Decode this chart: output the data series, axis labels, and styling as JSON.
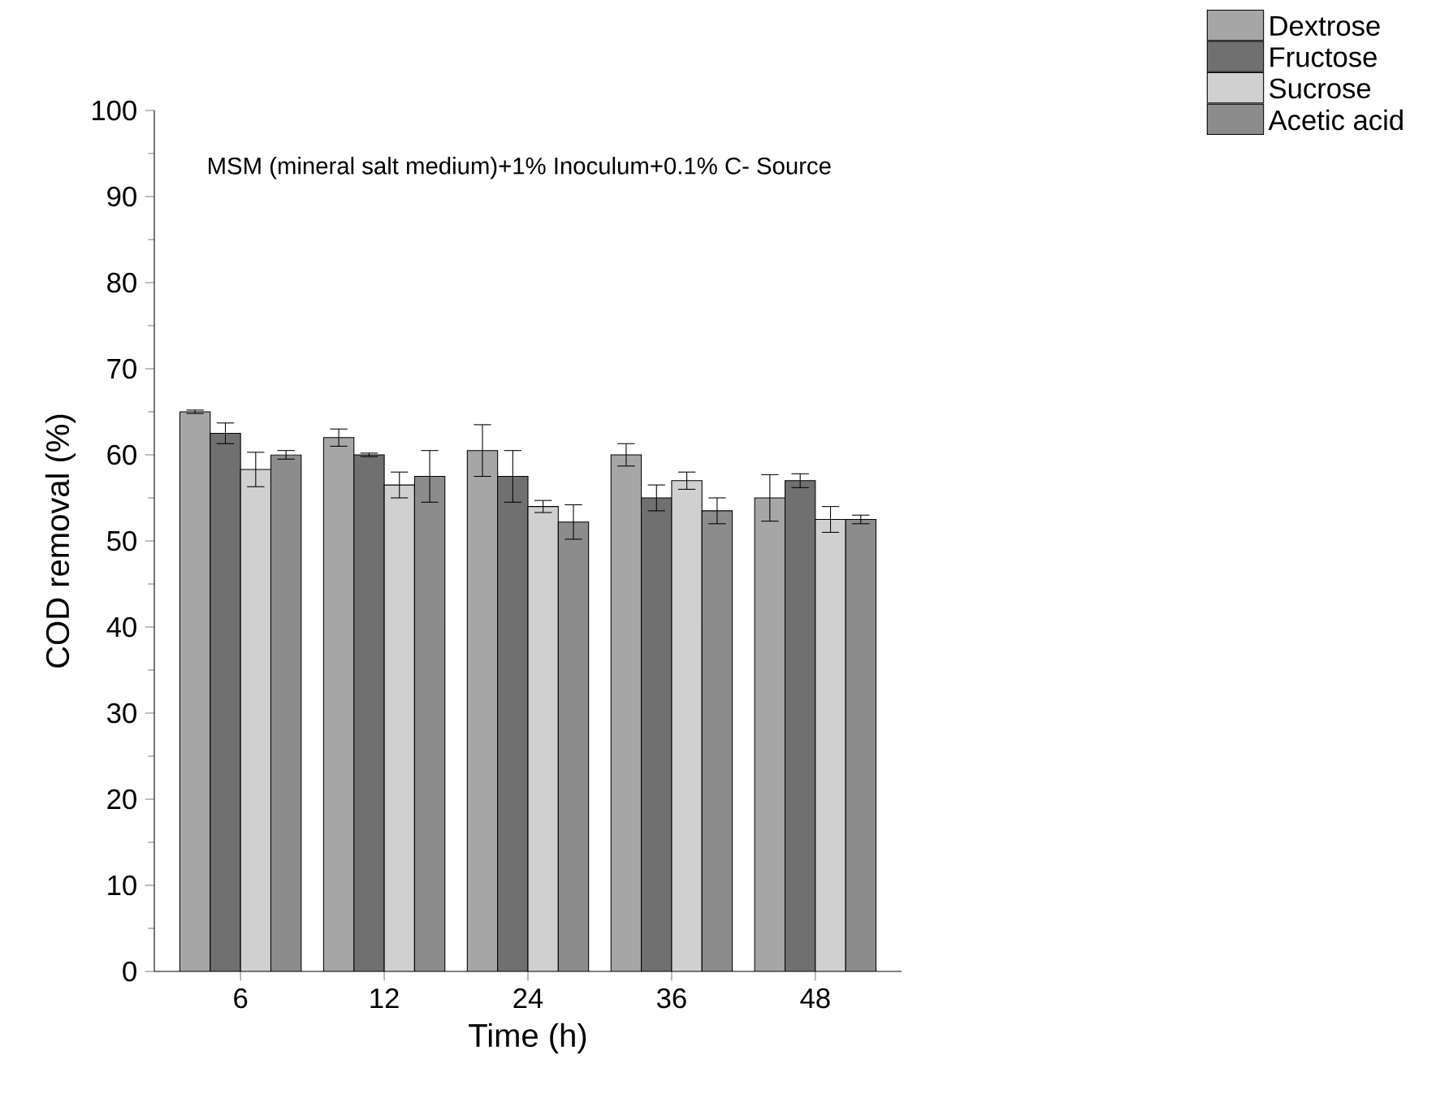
{
  "chart_data": {
    "type": "bar",
    "xlabel": "Time (h)",
    "ylabel": "COD removal (%)",
    "categories": [
      "6",
      "12",
      "24",
      "36",
      "48"
    ],
    "series": [
      {
        "name": "Dextrose",
        "color": "#a6a6a6",
        "values": [
          65,
          62,
          60.5,
          60,
          55
        ],
        "errors": [
          0.2,
          1,
          3,
          1.3,
          2.7
        ]
      },
      {
        "name": "Fructose",
        "color": "#707070",
        "values": [
          62.5,
          60,
          57.5,
          55,
          57
        ],
        "errors": [
          1.2,
          0.2,
          3,
          1.5,
          0.8
        ]
      },
      {
        "name": "Sucrose",
        "color": "#d0d0d0",
        "values": [
          58.3,
          56.5,
          54,
          57,
          52.5
        ],
        "errors": [
          2,
          1.5,
          0.7,
          1,
          1.5
        ]
      },
      {
        "name": "Acetic acid",
        "color": "#8c8c8c",
        "values": [
          60,
          57.5,
          52.2,
          53.5,
          52.5
        ],
        "errors": [
          0.5,
          3,
          2,
          1.5,
          0.5
        ]
      }
    ],
    "ylim": [
      0,
      100
    ],
    "yticks": [
      0,
      10,
      20,
      30,
      40,
      50,
      60,
      70,
      80,
      90,
      100
    ],
    "annotations": [
      "MSM (mineral salt medium)+1% Inoculum+0.1% C- Source"
    ],
    "legend": "top right",
    "grid": false
  }
}
